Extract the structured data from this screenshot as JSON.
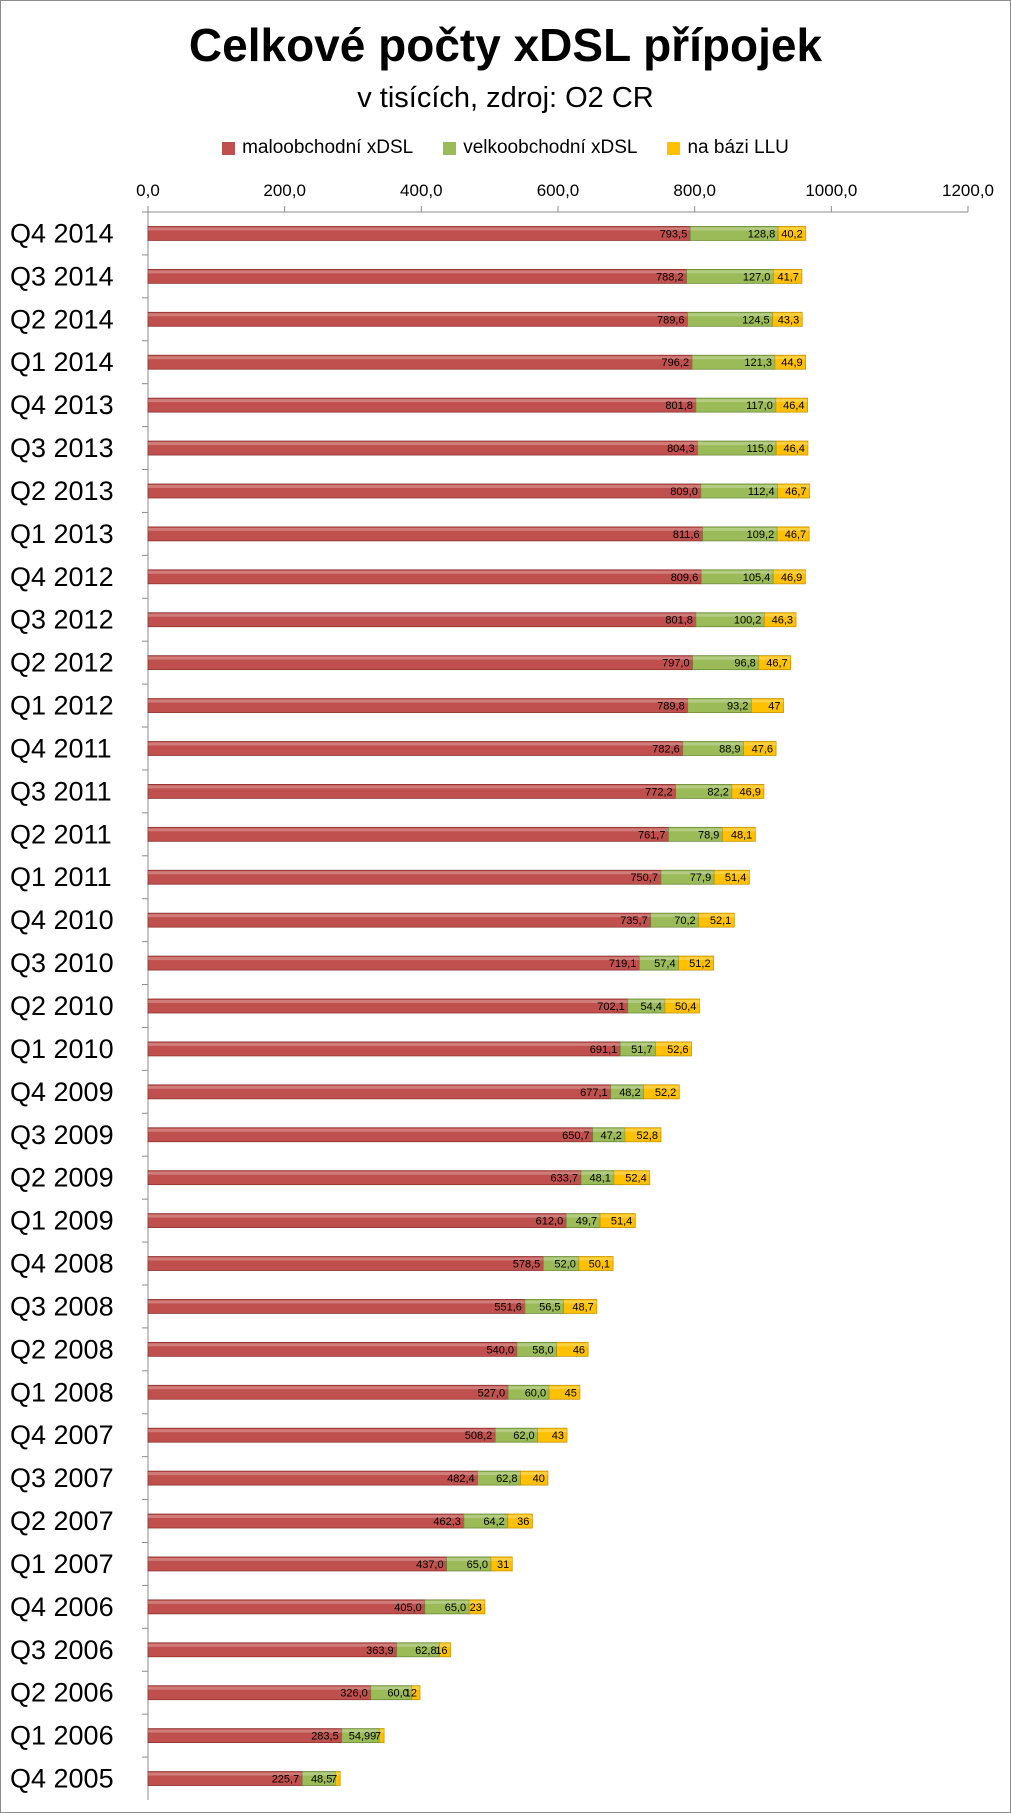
{
  "chart_data": {
    "type": "bar",
    "orientation": "horizontal",
    "stacked": true,
    "title": "Celkové počty xDSL přípojek",
    "subtitle": "v tisících,  zdroj: O2 CR",
    "legend_position": "top",
    "xlim": [
      0,
      1200
    ],
    "x_ticks": [
      "0,0",
      "200,0",
      "400,0",
      "600,0",
      "800,0",
      "1000,0",
      "1200,0"
    ],
    "categories": [
      "Q4 2014",
      "Q3 2014",
      "Q2 2014",
      "Q1 2014",
      "Q4 2013",
      "Q3 2013",
      "Q2 2013",
      "Q1 2013",
      "Q4 2012",
      "Q3 2012",
      "Q2 2012",
      "Q1 2012",
      "Q4 2011",
      "Q3 2011",
      "Q2 2011",
      "Q1 2011",
      "Q4 2010",
      "Q3 2010",
      "Q2 2010",
      "Q1 2010",
      "Q4 2009",
      "Q3 2009",
      "Q2 2009",
      "Q1 2009",
      "Q4 2008",
      "Q3 2008",
      "Q2 2008",
      "Q1 2008",
      "Q4 2007",
      "Q3 2007",
      "Q2 2007",
      "Q1 2007",
      "Q4 2006",
      "Q3 2006",
      "Q2 2006",
      "Q1 2006",
      "Q4 2005"
    ],
    "series": [
      {
        "name": "maloobchodní xDSL",
        "color": "#c0504d",
        "values": [
          793.5,
          788.2,
          789.6,
          796.2,
          801.8,
          804.3,
          809.0,
          811.6,
          809.6,
          801.8,
          797.0,
          789.8,
          782.6,
          772.2,
          761.7,
          750.7,
          735.7,
          719.1,
          702.1,
          691.1,
          677.1,
          650.7,
          633.7,
          612.0,
          578.5,
          551.6,
          540.0,
          527.0,
          508.2,
          482.4,
          462.3,
          437.0,
          405.0,
          363.9,
          326.0,
          283.5,
          225.7
        ],
        "labels": [
          "793,5",
          "788,2",
          "789,6",
          "796,2",
          "801,8",
          "804,3",
          "809,0",
          "811,6",
          "809,6",
          "801,8",
          "797,0",
          "789,8",
          "782,6",
          "772,2",
          "761,7",
          "750,7",
          "735,7",
          "719,1",
          "702,1",
          "691,1",
          "677,1",
          "650,7",
          "633,7",
          "612,0",
          "578,5",
          "551,6",
          "540,0",
          "527,0",
          "508,2",
          "482,4",
          "462,3",
          "437,0",
          "405,0",
          "363,9",
          "326,0",
          "283,5",
          "225,7"
        ]
      },
      {
        "name": "velkoobchodní xDSL",
        "color": "#9bbb59",
        "values": [
          128.8,
          127.0,
          124.5,
          121.3,
          117.0,
          115.0,
          112.4,
          109.2,
          105.4,
          100.2,
          96.8,
          93.2,
          88.9,
          82.2,
          78.9,
          77.9,
          70.2,
          57.4,
          54.4,
          51.7,
          48.2,
          47.2,
          48.1,
          49.7,
          52.0,
          56.5,
          58.0,
          60.0,
          62.0,
          62.8,
          64.2,
          65.0,
          65.0,
          62.8,
          60.0,
          54.99,
          48.5
        ],
        "labels": [
          "128,8",
          "127,0",
          "124,5",
          "121,3",
          "117,0",
          "115,0",
          "112,4",
          "109,2",
          "105,4",
          "100,2",
          "96,8",
          "93,2",
          "88,9",
          "82,2",
          "78,9",
          "77,9",
          "70,2",
          "57,4",
          "54,4",
          "51,7",
          "48,2",
          "47,2",
          "48,1",
          "49,7",
          "52,0",
          "56,5",
          "58,0",
          "60,0",
          "62,0",
          "62,8",
          "64,2",
          "65,0",
          "65,0",
          "62,8",
          "60,0",
          "54,99",
          "48,5"
        ]
      },
      {
        "name": "na bázi LLU",
        "color": "#ffc000",
        "values": [
          40.2,
          41.7,
          43.3,
          44.9,
          46.4,
          46.4,
          46.7,
          46.7,
          46.9,
          46.3,
          46.7,
          47,
          47.6,
          46.9,
          48.1,
          51.4,
          52.1,
          51.2,
          50.4,
          52.6,
          52.2,
          52.8,
          52.4,
          51.4,
          50.1,
          48.7,
          46,
          45,
          43,
          40,
          36,
          31,
          23,
          16,
          12,
          7,
          7
        ],
        "labels": [
          "40,2",
          "41,7",
          "43,3",
          "44,9",
          "46,4",
          "46,4",
          "46,7",
          "46,7",
          "46,9",
          "46,3",
          "46,7",
          "47",
          "47,6",
          "46,9",
          "48,1",
          "51,4",
          "52,1",
          "51,2",
          "50,4",
          "52,6",
          "52,2",
          "52,8",
          "52,4",
          "51,4",
          "50,1",
          "48,7",
          "46",
          "45",
          "43",
          "40",
          "36",
          "31",
          "23",
          "16",
          "12",
          "7",
          "7"
        ]
      }
    ]
  }
}
